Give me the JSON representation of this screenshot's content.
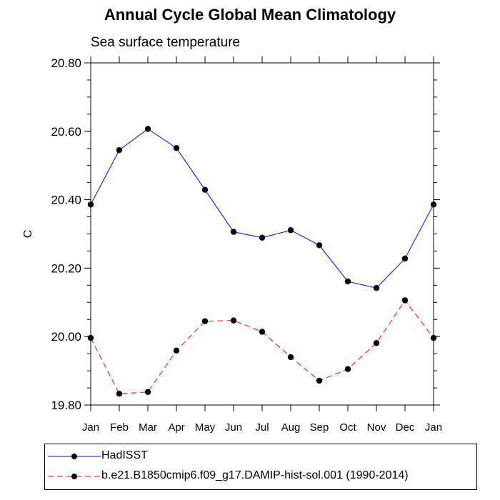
{
  "chart_data": {
    "type": "line",
    "title": "Annual Cycle Global Mean Climatology",
    "subtitle": "Sea surface temperature",
    "xlabel": "",
    "ylabel": "C",
    "categories": [
      "Jan",
      "Feb",
      "Mar",
      "Apr",
      "May",
      "Jun",
      "Jul",
      "Aug",
      "Sep",
      "Oct",
      "Nov",
      "Dec",
      "Jan"
    ],
    "ylim": [
      19.8,
      20.8
    ],
    "yticks": [
      "19.80",
      "20.00",
      "20.20",
      "20.40",
      "20.60",
      "20.80"
    ],
    "series": [
      {
        "name": "HadISST",
        "color": "#0000ff",
        "dash": "solid",
        "values": [
          20.386,
          20.545,
          20.607,
          20.551,
          20.429,
          20.306,
          20.289,
          20.311,
          20.267,
          20.161,
          20.142,
          20.228,
          20.386
        ]
      },
      {
        "name": "b.e21.B1850cmip6.f09_g17.DAMIP-hist-sol.001 (1990-2014)",
        "color": "#ff0000",
        "dash": "dashed",
        "values": [
          19.996,
          19.833,
          19.838,
          19.959,
          20.045,
          20.047,
          20.014,
          19.94,
          19.871,
          19.905,
          19.981,
          20.106,
          19.996
        ]
      }
    ]
  }
}
